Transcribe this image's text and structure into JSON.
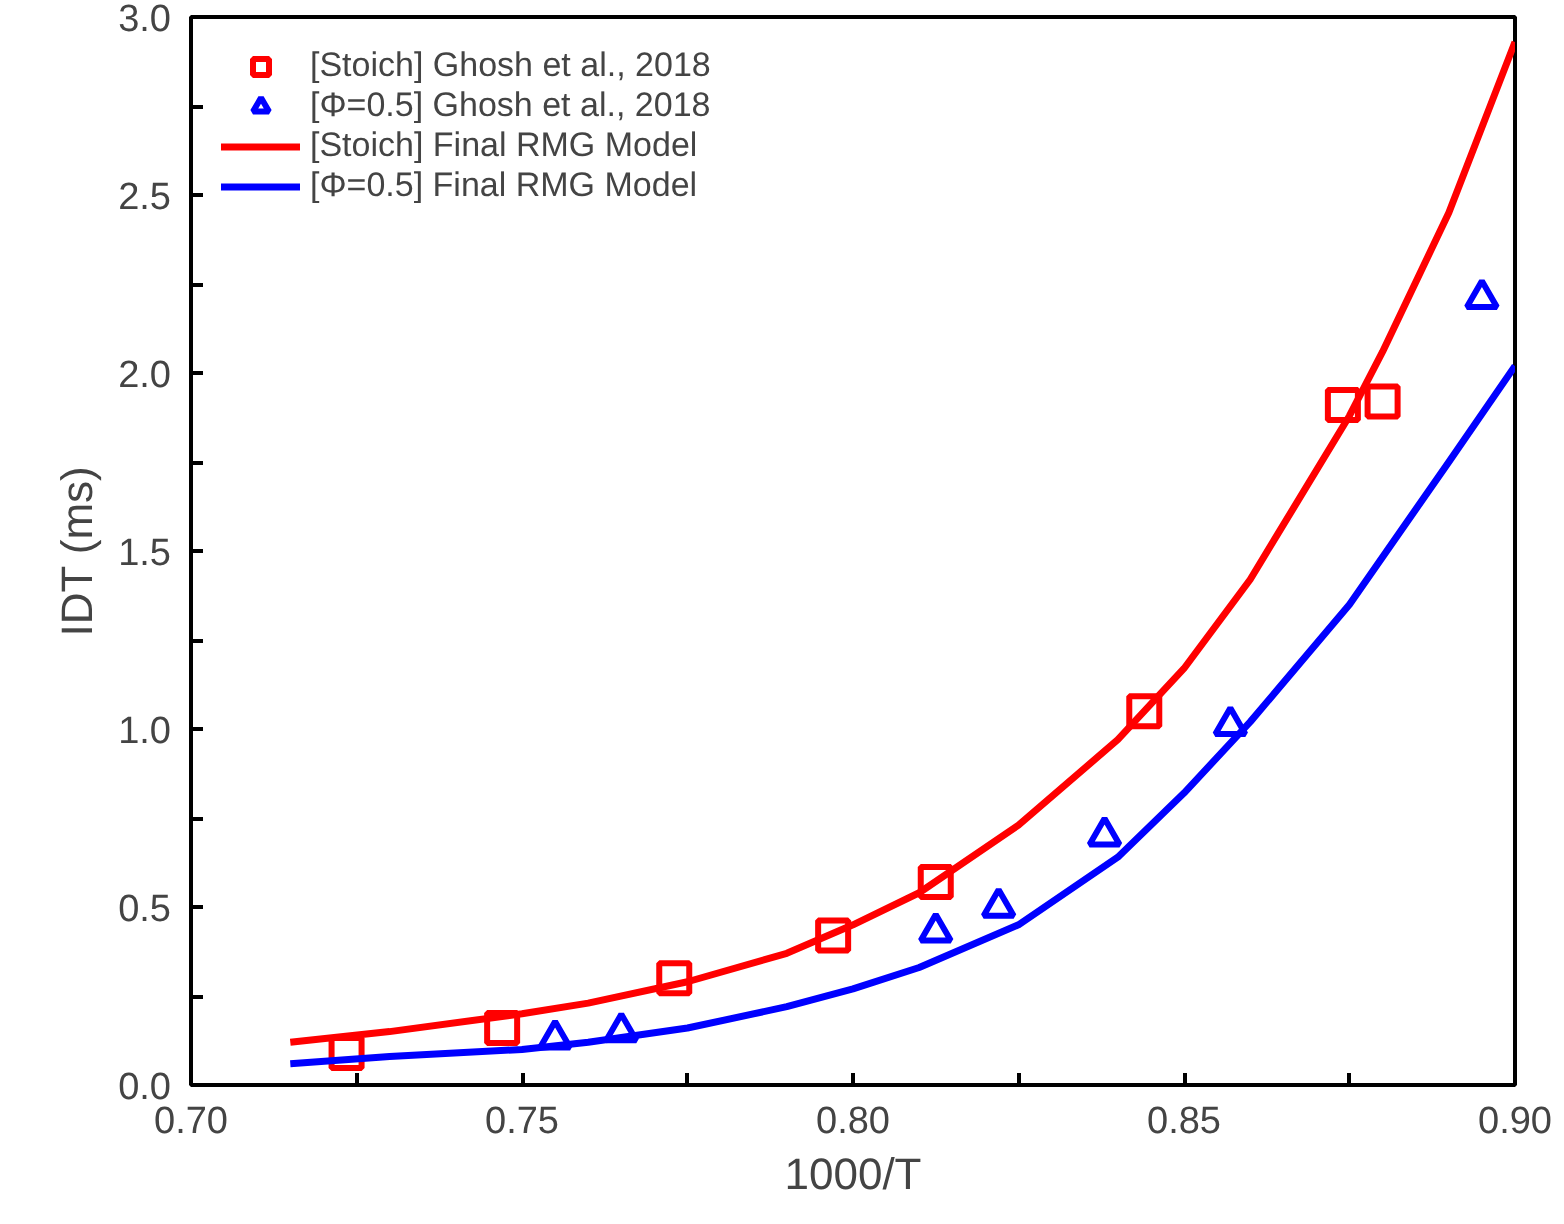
{
  "chart_data": {
    "type": "scatter",
    "xlabel": "1000/T",
    "ylabel": "IDT (ms)",
    "xlim": [
      0.7,
      0.9
    ],
    "ylim": [
      0.0,
      3.0
    ],
    "xticks": [
      {
        "value": 0.7,
        "label": "0.70"
      },
      {
        "value": 0.725,
        "label": null
      },
      {
        "value": 0.75,
        "label": "0.75"
      },
      {
        "value": 0.775,
        "label": null
      },
      {
        "value": 0.8,
        "label": "0.80"
      },
      {
        "value": 0.825,
        "label": null
      },
      {
        "value": 0.85,
        "label": "0.85"
      },
      {
        "value": 0.875,
        "label": null
      },
      {
        "value": 0.9,
        "label": "0.90"
      }
    ],
    "yticks": [
      {
        "value": 0,
        "label": "0.0"
      },
      {
        "value": 0.25,
        "label": null
      },
      {
        "value": 0.5,
        "label": "0.5"
      },
      {
        "value": 0.75,
        "label": null
      },
      {
        "value": 1,
        "label": "1.0"
      },
      {
        "value": 1.25,
        "label": null
      },
      {
        "value": 1.5,
        "label": "1.5"
      },
      {
        "value": 1.75,
        "label": null
      },
      {
        "value": 2,
        "label": "2.0"
      },
      {
        "value": 2.25,
        "label": null
      },
      {
        "value": 2.5,
        "label": "2.5"
      },
      {
        "value": 2.75,
        "label": null
      },
      {
        "value": 3,
        "label": "3.0"
      }
    ],
    "grid": false,
    "legend": "top left",
    "series": [
      {
        "name": "[Stoich] Ghosh et al., 2018",
        "marker": "square",
        "color": "#ff0000",
        "x": [
          0.7235,
          0.747,
          0.773,
          0.797,
          0.8125,
          0.844,
          0.874,
          0.88
        ],
        "values": [
          0.09,
          0.16,
          0.3,
          0.42,
          0.57,
          1.05,
          1.91,
          1.92
        ]
      },
      {
        "name": "[Φ=0.5] Ghosh et al., 2018",
        "marker": "triangle",
        "color": "#0000ff",
        "x": [
          0.755,
          0.765,
          0.8125,
          0.822,
          0.838,
          0.857,
          0.895
        ],
        "values": [
          0.13,
          0.15,
          0.43,
          0.5,
          0.7,
          1.01,
          2.21
        ]
      },
      {
        "name": "[Stoich] Final RMG Model",
        "type": "line",
        "line_style": "solid",
        "color": "#ff0000",
        "x": [
          0.715,
          0.73,
          0.75,
          0.76,
          0.775,
          0.79,
          0.8,
          0.81,
          0.825,
          0.84,
          0.85,
          0.86,
          0.875,
          0.88,
          0.89,
          0.9
        ],
        "values": [
          0.12,
          0.15,
          0.2,
          0.23,
          0.29,
          0.37,
          0.45,
          0.54,
          0.73,
          0.97,
          1.17,
          1.42,
          1.88,
          2.06,
          2.45,
          2.93
        ]
      },
      {
        "name": "[Φ=0.5] Final RMG Model",
        "type": "line",
        "line_style": "solid",
        "color": "#0000ff",
        "x": [
          0.715,
          0.73,
          0.75,
          0.76,
          0.775,
          0.79,
          0.8,
          0.81,
          0.825,
          0.84,
          0.85,
          0.86,
          0.875,
          0.89,
          0.9
        ],
        "values": [
          0.06,
          0.08,
          0.1,
          0.12,
          0.16,
          0.22,
          0.27,
          0.33,
          0.45,
          0.64,
          0.82,
          1.02,
          1.35,
          1.75,
          2.02
        ]
      }
    ]
  }
}
